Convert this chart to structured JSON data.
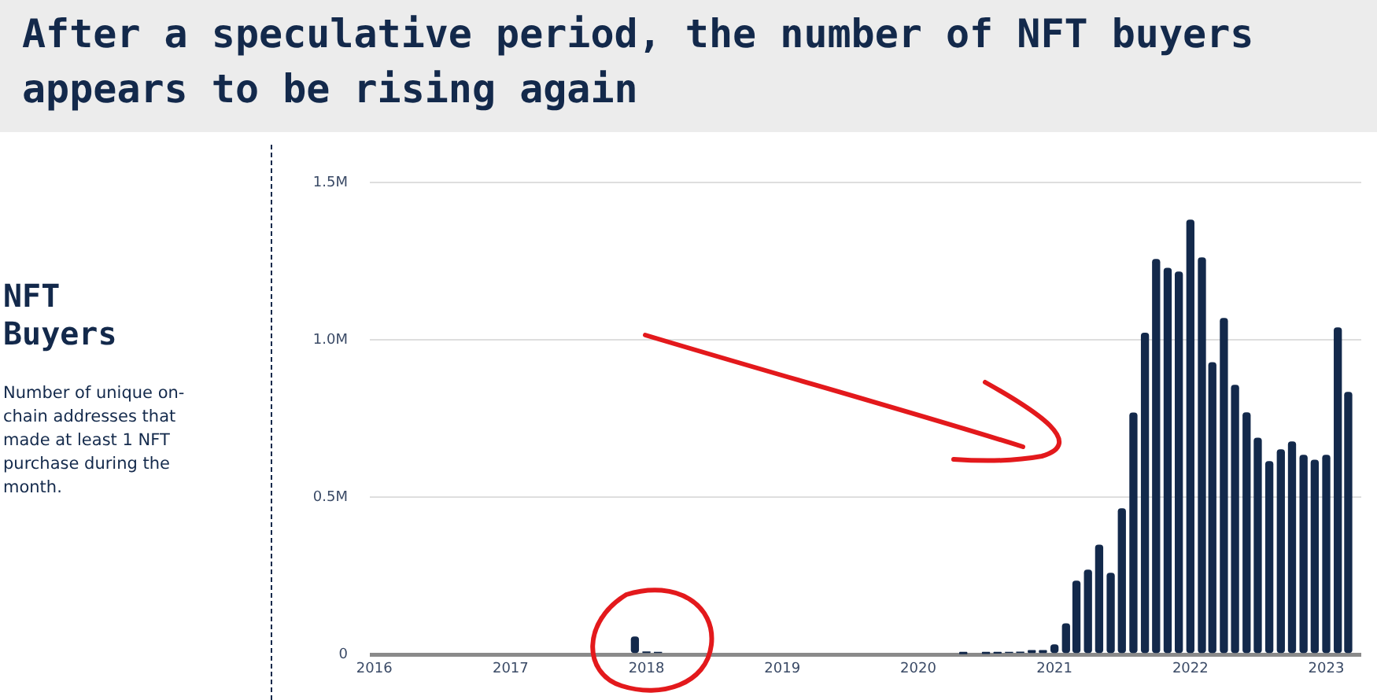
{
  "chart_data": {
    "type": "bar",
    "title": "After a speculative period, the number of NFT buyers appears to be rising again",
    "subtitle": "NFT Buyers",
    "annotations": [
      "Number of unique on-chain addresses that made at least 1 NFT purchase during the month."
    ],
    "x": [
      "2017-12",
      "2018-01",
      "2018-02",
      "2020-05",
      "2020-07",
      "2020-08",
      "2020-09",
      "2020-10",
      "2020-11",
      "2020-12",
      "2021-01",
      "2021-02",
      "2021-03",
      "2021-04",
      "2021-05",
      "2021-06",
      "2021-07",
      "2021-08",
      "2021-09",
      "2021-10",
      "2021-11",
      "2021-12",
      "2022-01",
      "2022-02",
      "2022-03",
      "2022-04",
      "2022-05",
      "2022-06",
      "2022-07",
      "2022-08",
      "2022-09",
      "2022-10",
      "2022-11",
      "2022-12",
      "2023-01",
      "2023-02",
      "2023-03"
    ],
    "values": [
      55000,
      8000,
      6000,
      2000,
      3000,
      4000,
      6000,
      7000,
      12000,
      12000,
      30000,
      97000,
      233000,
      268000,
      347000,
      258000,
      463000,
      767000,
      1021000,
      1255000,
      1227000,
      1215000,
      1380000,
      1260000,
      927000,
      1068000,
      855000,
      768000,
      687000,
      613000,
      650000,
      675000,
      633000,
      617000,
      633000,
      1038000,
      833000
    ],
    "color": "#13294b",
    "xlim": [
      "2015-12-20",
      "2023-04-05"
    ],
    "xticks": [
      "2016",
      "2017",
      "2018",
      "2019",
      "2020",
      "2021",
      "2022",
      "2023"
    ],
    "ylim": [
      0,
      1500000
    ],
    "yticks": [
      0,
      {
        "value": 500000,
        "label": "0.5M"
      },
      {
        "value": 1000000,
        "label": "1.0M"
      },
      {
        "value": 1500000,
        "label": "1.5M"
      }
    ],
    "grid": "y",
    "legend": false
  }
}
